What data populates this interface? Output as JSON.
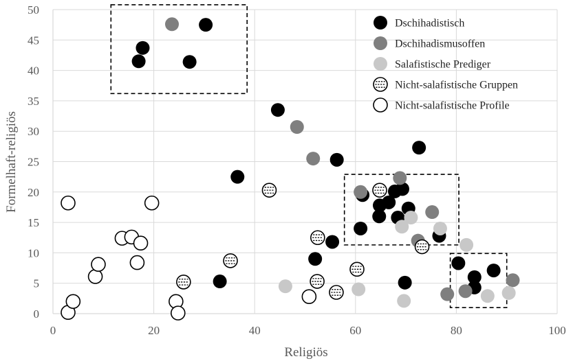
{
  "chart_data": {
    "type": "scatter",
    "xlabel": "Religiös",
    "ylabel": "Formelhaft-religiös",
    "xlim": [
      0,
      100
    ],
    "ylim": [
      0,
      50
    ],
    "xticks": [
      "0",
      "20",
      "40",
      "60",
      "80",
      "100"
    ],
    "yticks": [
      "0",
      "5",
      "10",
      "15",
      "20",
      "25",
      "30",
      "35",
      "40",
      "45",
      "50"
    ],
    "grid": "on",
    "legend_position": "top-right",
    "series": [
      {
        "name": "Dschihadistisch",
        "color": "#000000",
        "marker": "filled-circle",
        "points": [
          [
            17,
            41.5
          ],
          [
            17.8,
            43.7
          ],
          [
            27.1,
            41.4
          ],
          [
            30.3,
            47.5
          ],
          [
            33.1,
            5.3
          ],
          [
            36.6,
            22.5
          ],
          [
            44.6,
            33.5
          ],
          [
            52,
            9
          ],
          [
            55.4,
            11.8
          ],
          [
            56.3,
            25.3
          ],
          [
            61,
            14
          ],
          [
            61.4,
            19.5
          ],
          [
            64.7,
            16
          ],
          [
            64.8,
            17.8
          ],
          [
            66.6,
            18.3
          ],
          [
            67.8,
            20.1
          ],
          [
            68.4,
            15.8
          ],
          [
            69.3,
            20.5
          ],
          [
            69.8,
            5.1
          ],
          [
            70.5,
            17.3
          ],
          [
            72.6,
            27.3
          ],
          [
            76.6,
            12.8
          ],
          [
            80.4,
            8.3
          ],
          [
            83.6,
            6
          ],
          [
            83.6,
            4.3
          ],
          [
            87.4,
            7.1
          ]
        ]
      },
      {
        "name": "Dschihadismusoffen",
        "color": "#7f7f7f",
        "marker": "filled-circle",
        "points": [
          [
            23.6,
            47.6
          ],
          [
            48.4,
            30.7
          ],
          [
            51.6,
            25.5
          ],
          [
            61,
            20
          ],
          [
            68.8,
            22.3
          ],
          [
            72.4,
            12
          ],
          [
            75.2,
            16.7
          ],
          [
            78.2,
            3.2
          ],
          [
            81.8,
            3.7
          ],
          [
            91.2,
            5.5
          ]
        ]
      },
      {
        "name": "Salafistische Prediger",
        "color": "#c8c8c8",
        "marker": "filled-circle",
        "points": [
          [
            46.1,
            4.5
          ],
          [
            60.6,
            4
          ],
          [
            69.2,
            14.3
          ],
          [
            69.6,
            2.1
          ],
          [
            71,
            15.8
          ],
          [
            76.8,
            14
          ],
          [
            82,
            11.3
          ],
          [
            86.2,
            2.9
          ],
          [
            90.4,
            3.4
          ]
        ]
      },
      {
        "name": "Nicht-salafistische Gruppen",
        "color": "#000000",
        "marker": "dashed-circle",
        "points": [
          [
            25.9,
            5.2
          ],
          [
            35.2,
            8.7
          ],
          [
            42.9,
            20.3
          ],
          [
            52.4,
            5.3
          ],
          [
            52.5,
            12.5
          ],
          [
            56.2,
            3.5
          ],
          [
            60.3,
            7.3
          ],
          [
            64.8,
            20.3
          ],
          [
            73.2,
            11
          ]
        ]
      },
      {
        "name": "Nicht-salafistische Profile",
        "color": "#000000",
        "marker": "open-circle",
        "points": [
          [
            3,
            0.2
          ],
          [
            3,
            18.2
          ],
          [
            4,
            2
          ],
          [
            8.4,
            6.1
          ],
          [
            9,
            8.1
          ],
          [
            13.7,
            12.4
          ],
          [
            15.6,
            12.6
          ],
          [
            16.7,
            8.4
          ],
          [
            17.4,
            11.6
          ],
          [
            19.6,
            18.2
          ],
          [
            24.4,
            2
          ],
          [
            24.8,
            0.1
          ],
          [
            50.8,
            2.8
          ]
        ]
      }
    ],
    "highlight_boxes": [
      {
        "x": [
          11.5,
          38.5
        ],
        "y": [
          36.2,
          50.8
        ]
      },
      {
        "x": [
          57.8,
          80.5
        ],
        "y": [
          11.3,
          22.9
        ]
      },
      {
        "x": [
          78.8,
          90
        ],
        "y": [
          1,
          9.9
        ]
      }
    ]
  }
}
